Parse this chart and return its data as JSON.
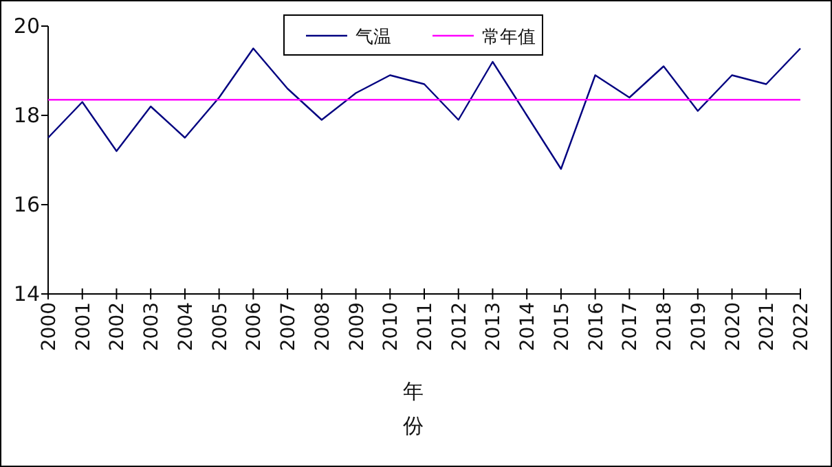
{
  "chart_data": {
    "type": "line",
    "xlabel": "年份",
    "categories": [
      "2000",
      "2001",
      "2002",
      "2003",
      "2004",
      "2005",
      "2006",
      "2007",
      "2008",
      "2009",
      "2010",
      "2011",
      "2012",
      "2013",
      "2014",
      "2015",
      "2016",
      "2017",
      "2018",
      "2019",
      "2020",
      "2021",
      "2022"
    ],
    "series": [
      {
        "name": "气温",
        "color": "#000080",
        "values": [
          17.5,
          18.3,
          17.2,
          18.2,
          17.5,
          18.4,
          19.5,
          18.6,
          17.9,
          18.5,
          18.9,
          18.7,
          17.9,
          19.2,
          18.0,
          16.8,
          18.9,
          18.4,
          19.1,
          18.1,
          18.9,
          18.7,
          19.5
        ]
      },
      {
        "name": "常年值",
        "color": "#ff00ff",
        "values": [
          18.35,
          18.35,
          18.35,
          18.35,
          18.35,
          18.35,
          18.35,
          18.35,
          18.35,
          18.35,
          18.35,
          18.35,
          18.35,
          18.35,
          18.35,
          18.35,
          18.35,
          18.35,
          18.35,
          18.35,
          18.35,
          18.35,
          18.35
        ]
      }
    ],
    "ylim": [
      14,
      20
    ],
    "yticks": [
      14,
      16,
      18,
      20
    ],
    "legend": "top",
    "grid": false,
    "marker": "none",
    "line_style": "solid"
  }
}
